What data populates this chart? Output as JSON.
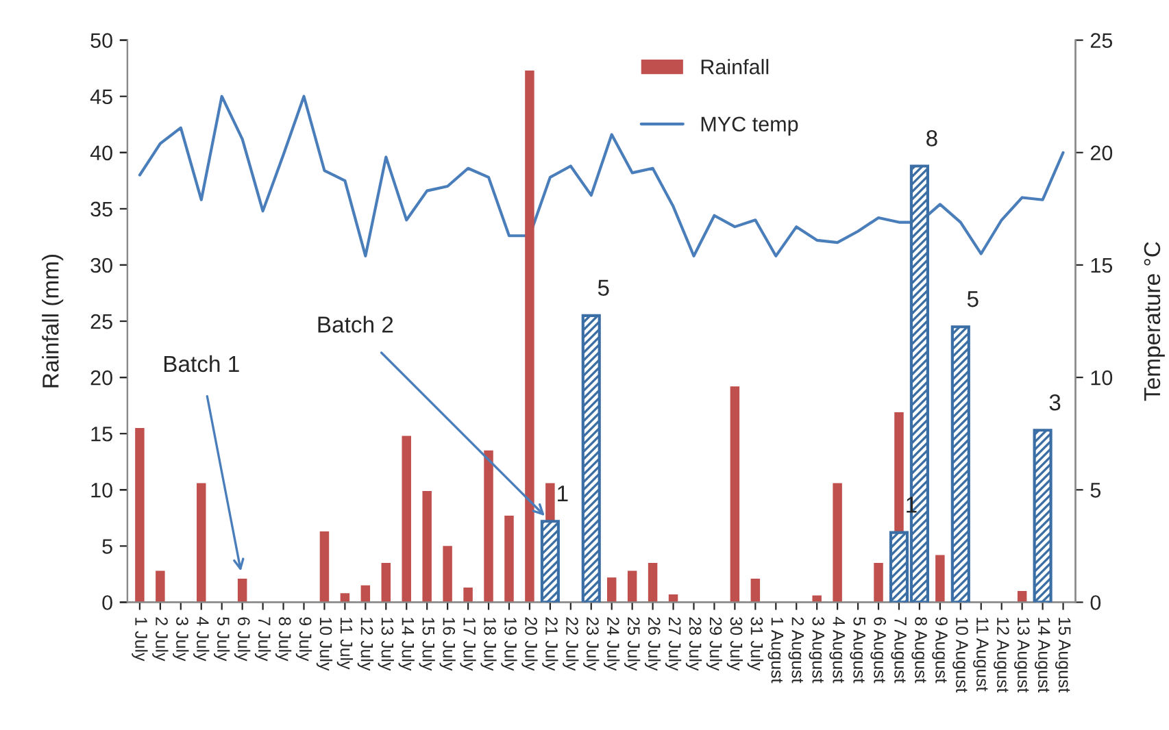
{
  "chart_data": {
    "type": "bar",
    "categories": [
      "1 July",
      "2 July",
      "3 July",
      "4 July",
      "5 July",
      "6 July",
      "7 July",
      "8 July",
      "9 July",
      "10 July",
      "11 July",
      "12 July",
      "13 July",
      "14 July",
      "15 July",
      "16 July",
      "17 July",
      "18 July",
      "19 July",
      "20 July",
      "21 July",
      "22 July",
      "23 July",
      "24 July",
      "25 July",
      "26 July",
      "27 July",
      "28 July",
      "29 July",
      "30 July",
      "31 July",
      "1 August",
      "2 August",
      "3 August",
      "4 August",
      "5 August",
      "6 August",
      "7 August",
      "8 August",
      "9 August",
      "10 August",
      "11 August",
      "12 August",
      "13 August",
      "14 August",
      "15 August"
    ],
    "series": [
      {
        "name": "Rainfall",
        "color": "#c0504d",
        "values": [
          15.5,
          2.8,
          null,
          10.6,
          null,
          2.1,
          null,
          null,
          null,
          6.3,
          0.8,
          1.5,
          3.5,
          14.8,
          9.9,
          5.0,
          1.3,
          13.5,
          7.7,
          47.3,
          10.6,
          null,
          null,
          2.2,
          2.8,
          3.5,
          0.7,
          null,
          null,
          19.2,
          2.1,
          null,
          null,
          0.6,
          10.6,
          null,
          3.5,
          16.9,
          null,
          4.2,
          null,
          null,
          null,
          1.0,
          null,
          null
        ]
      },
      {
        "color": "#3a6ea5",
        "values": [
          null,
          null,
          null,
          null,
          null,
          null,
          null,
          null,
          null,
          null,
          null,
          null,
          null,
          null,
          null,
          null,
          null,
          null,
          null,
          null,
          7.2,
          null,
          25.5,
          null,
          null,
          null,
          null,
          null,
          null,
          null,
          null,
          null,
          null,
          null,
          null,
          null,
          null,
          6.2,
          38.8,
          null,
          24.5,
          null,
          null,
          null,
          15.3,
          null
        ]
      },
      {
        "name": "MYC temp",
        "type": "line",
        "axis": "y2",
        "color": "#4a7ebb",
        "values": [
          19.0,
          20.4,
          21.1,
          17.9,
          22.5,
          20.6,
          17.4,
          19.9,
          22.5,
          19.2,
          18.75,
          15.4,
          19.8,
          17.0,
          18.3,
          18.5,
          19.3,
          18.9,
          16.3,
          16.3,
          18.9,
          19.4,
          18.1,
          20.8,
          19.1,
          19.3,
          17.6,
          15.4,
          17.2,
          16.7,
          17.0,
          15.4,
          16.7,
          16.1,
          16.0,
          16.5,
          17.1,
          16.9,
          16.9,
          17.7,
          16.9,
          15.5,
          17.0,
          18.0,
          17.9,
          20.0
        ]
      }
    ],
    "ylabel": "Rainfall (mm)",
    "y2label": "Temperature °C",
    "ylim": [
      0,
      50
    ],
    "yticks": [
      0,
      5,
      10,
      15,
      20,
      25,
      30,
      35,
      40,
      45,
      50
    ],
    "y2lim": [
      0,
      25
    ],
    "y2ticks": [
      0,
      5,
      10,
      15,
      20,
      25
    ],
    "annotations": [
      {
        "text": "Batch 1",
        "x": "6 July",
        "y": 2.1
      },
      {
        "text": "Batch 2",
        "x": "21 July",
        "y": 7.2
      },
      {
        "text": "1",
        "x": "21 July",
        "y": 7.2
      },
      {
        "text": "5",
        "x": "23 July",
        "y": 25.5
      },
      {
        "text": "1",
        "x": "7 August",
        "y": 6.2
      },
      {
        "text": "8",
        "x": "8 August",
        "y": 38.8
      },
      {
        "text": "5",
        "x": "10 August",
        "y": 24.5
      },
      {
        "text": "3",
        "x": "14 August",
        "y": 15.3
      }
    ],
    "legend": "top",
    "grid": false,
    "marker": "none",
    "line_style": "solid"
  }
}
